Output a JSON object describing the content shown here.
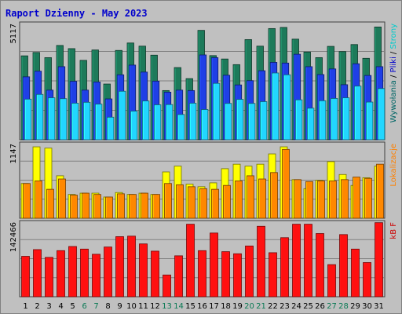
{
  "chart_data": {
    "type": "bar",
    "title": "Raport Dzienny -  May 2023",
    "categories": [
      "1",
      "2",
      "3",
      "4",
      "5",
      "6",
      "7",
      "8",
      "9",
      "10",
      "11",
      "12",
      "13",
      "14",
      "15",
      "16",
      "17",
      "18",
      "19",
      "20",
      "21",
      "22",
      "23",
      "24",
      "25",
      "26",
      "27",
      "28",
      "29",
      "30",
      "31"
    ],
    "weekend_days": [
      "6",
      "7",
      "13",
      "14",
      "20",
      "21",
      "27",
      "28"
    ],
    "panels": [
      {
        "id": "top",
        "scale_label": "5117",
        "legend": [
          "Wywołania",
          "Pliki",
          "Strony"
        ],
        "legend_colors": [
          "#006666",
          "#0000cc",
          "#00cccc"
        ],
        "ylim": [
          0,
          5117
        ],
        "series": [
          {
            "name": "Wywołania",
            "color": "#1d7a5a",
            "values": [
              3720,
              3870,
              3640,
              4180,
              4040,
              3520,
              3980,
              2470,
              3960,
              4290,
              4150,
              3750,
              2180,
              3200,
              2710,
              4850,
              3730,
              3580,
              3330,
              4440,
              4150,
              4930,
              4980,
              4460,
              3890,
              3640,
              4140,
              3910,
              4220,
              3610,
              5000
            ]
          },
          {
            "name": "Pliki",
            "color": "#1f3fe6",
            "values": [
              2790,
              3040,
              2200,
              3240,
              2590,
              2200,
              2560,
              1810,
              2880,
              3310,
              3000,
              2600,
              2110,
              2200,
              2180,
              3760,
              3640,
              2860,
              2430,
              2620,
              3060,
              3430,
              3400,
              3790,
              3240,
              2890,
              3140,
              2440,
              3370,
              2850,
              3240
            ]
          },
          {
            "name": "Strony",
            "color": "#22d6ff",
            "values": [
              1800,
              2010,
              1860,
              1820,
              1620,
              1660,
              1580,
              1000,
              2150,
              1270,
              1720,
              1550,
              1560,
              1120,
              1620,
              1340,
              2500,
              1610,
              1790,
              1610,
              1690,
              2960,
              2880,
              1770,
              1400,
              1730,
              1830,
              1860,
              2380,
              1670,
              2270
            ]
          }
        ]
      },
      {
        "id": "mid",
        "scale_label": "1147",
        "legend": [
          "Lokalizacje"
        ],
        "legend_colors": [
          "#ff8000"
        ],
        "ylim": [
          0,
          1147
        ],
        "series": [
          {
            "name": "Lokalizacje",
            "color": "#ffff00",
            "values": [
              540,
              1110,
              1090,
              660,
              370,
              390,
              390,
              330,
              400,
              370,
              390,
              370,
              720,
              810,
              530,
              490,
              550,
              770,
              840,
              810,
              840,
              1000,
              1110,
              600,
              460,
              590,
              880,
              680,
              510,
              630,
              810
            ]
          },
          {
            "name": "Lokalizacje_orange",
            "color": "#ff8800",
            "values": [
              540,
              580,
              450,
              610,
              360,
              390,
              370,
              330,
              380,
              370,
              390,
              370,
              540,
              520,
              490,
              460,
              450,
              510,
              580,
              660,
              610,
              710,
              1070,
              600,
              570,
              580,
              580,
              600,
              640,
              620,
              840
            ]
          }
        ]
      },
      {
        "id": "bot",
        "scale_label": "142466",
        "legend": [
          "kB F"
        ],
        "legend_colors": [
          "#cc0000"
        ],
        "ylim": [
          0,
          142466
        ],
        "series": [
          {
            "name": "kB F",
            "color": "#ff1010",
            "values": [
              78000,
              91000,
              76000,
              89000,
              97000,
              92000,
              82000,
              96000,
              116000,
              117000,
              102000,
              88000,
              42000,
              79000,
              140000,
              89000,
              123000,
              87000,
              83000,
              98000,
              136000,
              85000,
              114000,
              140000,
              140000,
              122000,
              62000,
              120000,
              92000,
              66000,
              143000
            ]
          }
        ]
      }
    ]
  }
}
